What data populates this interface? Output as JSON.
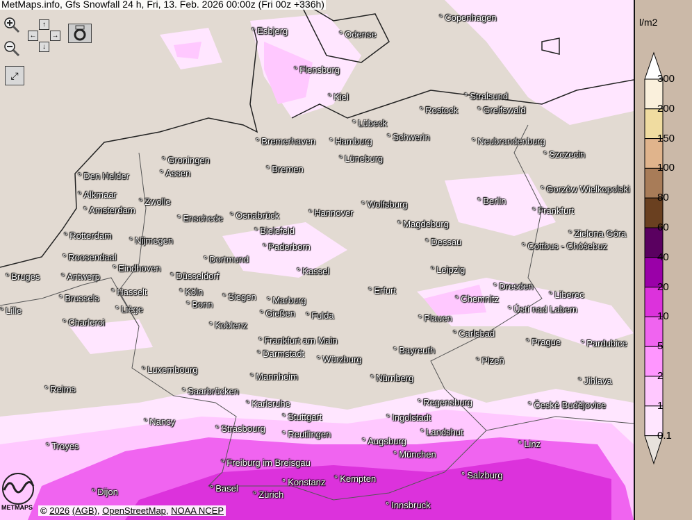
{
  "title": "MetMaps.info, Gfs Snowfall 24 h, Fri, 13. Feb. 2026 00:00z (Fri 00z +336h)",
  "controls": {
    "zoom_in": "zoom-in-icon",
    "zoom_out": "zoom-out-icon",
    "pan": "pan-arrows-icon",
    "screenshot": "camera-icon",
    "fullscreen": "fullscreen-icon"
  },
  "copyright": {
    "symbol": "©",
    "year": "2026",
    "agb": "(AGB)",
    "osm": "OpenStreetMap",
    "noaa": "NOAA NCEP"
  },
  "logo_text": "METMAPS",
  "legend": {
    "unit": "l/m2",
    "labels": [
      "300",
      "200",
      "150",
      "100",
      "80",
      "60",
      "40",
      "20",
      "10",
      "5",
      "2",
      "1",
      "0.1"
    ],
    "colors": [
      "#faf0dc",
      "#f0dca0",
      "#e0b48c",
      "#a87c58",
      "#6a4020",
      "#5a0060",
      "#9a00a8",
      "#dc32dc",
      "#f064f0",
      "#ff96ff",
      "#ffc8ff",
      "#ffe6ff"
    ]
  },
  "colors": {
    "land": "#e2dad2",
    "snow_light": "#ffe6ff",
    "snow_mid": "#ffc8ff",
    "snow_high": "#f064f0",
    "snow_heavy": "#dc32dc"
  },
  "cities": [
    "Copenhagen",
    "Esbjerg",
    "Odense",
    "Flensburg",
    "Kiel",
    "Stralsund",
    "Rostock",
    "Greifswald",
    "Lübeck",
    "Schwerin",
    "Bremerhaven",
    "Hamburg",
    "Neubrandenburg",
    "Szczecin",
    "Groningen",
    "Assen",
    "Lüneburg",
    "Bremen",
    "Den Helder",
    "Gorzów Wielkopolski",
    "Alkmaar",
    "Berlin",
    "Zwolle",
    "Amsterdam",
    "Hannover",
    "Wolfsburg",
    "Frankfurt",
    "Enschede",
    "Osnabrück",
    "Magdeburg",
    "Bielefeld",
    "Rotterdam",
    "Nijmegen",
    "Zielona Góra",
    "Dessau",
    "Paderborn",
    "Cottbus - Chóśebuz",
    "Roosendaal",
    "Eindhoven",
    "Dortmund",
    "Leipzig",
    "Kassel",
    "Bruges",
    "Antwerp",
    "Düsseldorf",
    "Dresden",
    "Hasselt",
    "Köln",
    "Erfurt",
    "Brussels",
    "Siegen",
    "Marburg",
    "Chemnitz",
    "Liberec",
    "Ústí nad Labem",
    "Lille",
    "Liège",
    "Bonn",
    "Gießen",
    "Fulda",
    "Plauen",
    "Charleroi",
    "Koblenz",
    "Carlsbad",
    "Prague",
    "Pardubice",
    "Frankfurt am Main",
    "Bayreuth",
    "Darmstadt",
    "Würzburg",
    "Plzeň",
    "Luxembourg",
    "Mannheim",
    "Nürnberg",
    "Jihlava",
    "Reims",
    "Saarbrücken",
    "Karlsruhe",
    "Regensburg",
    "České Budějovice",
    "Stuttgart",
    "Ingolstadt",
    "Nancy",
    "Strasbourg",
    "Reutlingen",
    "Landshut",
    "Augsburg",
    "Troyes",
    "Linz",
    "München",
    "Freiburg im Breisgau",
    "Salzburg",
    "Konstanz",
    "Kempten",
    "Basel",
    "Zürich",
    "Dijon",
    "Innsbruck"
  ]
}
